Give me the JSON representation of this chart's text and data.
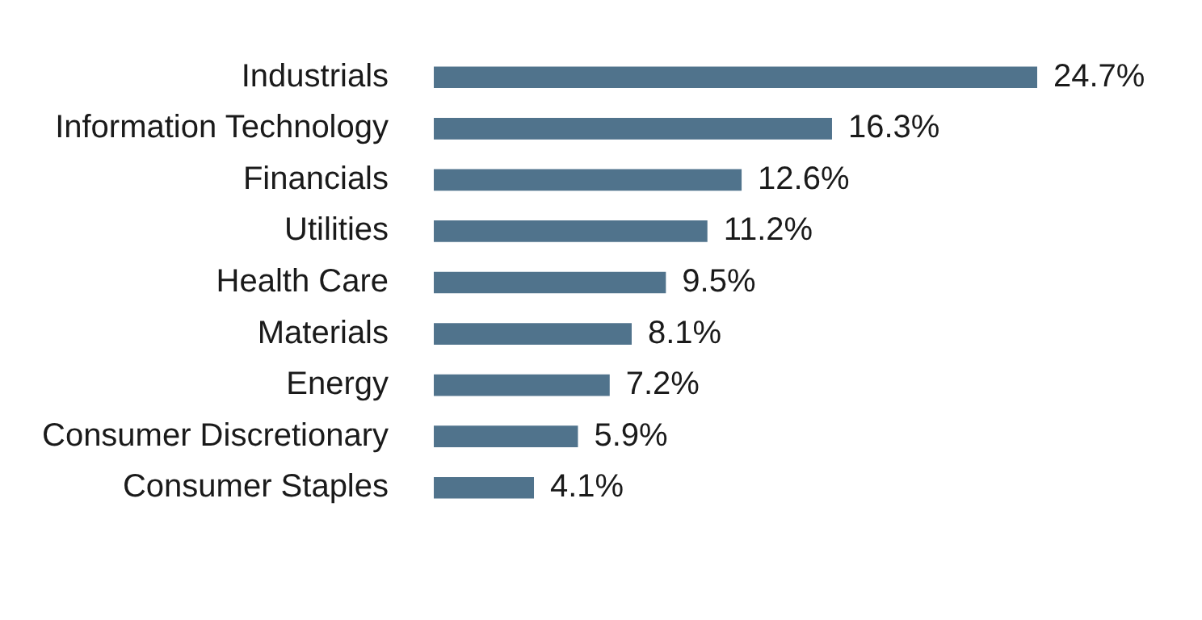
{
  "chart_data": {
    "type": "bar",
    "orientation": "horizontal",
    "categories": [
      "Industrials",
      "Information Technology",
      "Financials",
      "Utilities",
      "Health Care",
      "Materials",
      "Energy",
      "Consumer Discretionary",
      "Consumer Staples"
    ],
    "values": [
      24.7,
      16.3,
      12.6,
      11.2,
      9.5,
      8.1,
      7.2,
      5.9,
      4.1
    ],
    "value_labels": [
      "24.7%",
      "16.3%",
      "12.6%",
      "11.2%",
      "9.5%",
      "8.1%",
      "7.2%",
      "5.9%",
      "4.1%"
    ],
    "color": "#50738c"
  }
}
